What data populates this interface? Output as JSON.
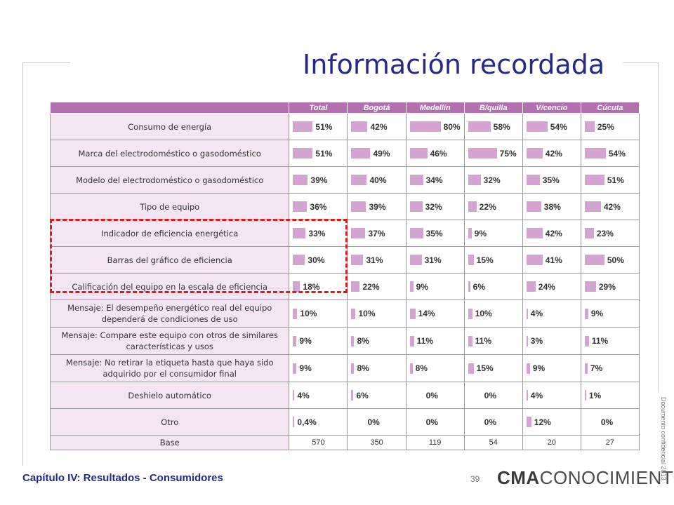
{
  "title": "Información recordada",
  "table": {
    "columns": [
      "Total",
      "Bogotá",
      "Medellín",
      "B/quilla",
      "V/cencio",
      "Cúcuta"
    ],
    "rows": [
      {
        "label": "Consumo de energía",
        "values": [
          "51%",
          "42%",
          "80%",
          "58%",
          "54%",
          "25%"
        ],
        "levels": [
          51,
          42,
          80,
          58,
          54,
          25
        ]
      },
      {
        "label": "Marca del electrodoméstico  o gasodoméstico",
        "values": [
          "51%",
          "49%",
          "46%",
          "75%",
          "42%",
          "54%"
        ],
        "levels": [
          51,
          49,
          46,
          75,
          42,
          54
        ]
      },
      {
        "label": "Modelo del electrodoméstico  o gasodoméstico",
        "values": [
          "39%",
          "40%",
          "34%",
          "32%",
          "35%",
          "51%"
        ],
        "levels": [
          39,
          40,
          34,
          32,
          35,
          51
        ]
      },
      {
        "label": "Tipo de equipo",
        "values": [
          "36%",
          "39%",
          "32%",
          "22%",
          "38%",
          "42%"
        ],
        "levels": [
          36,
          39,
          32,
          22,
          38,
          42
        ]
      },
      {
        "label": "Indicador de eficiencia  energética",
        "values": [
          "33%",
          "37%",
          "35%",
          "9%",
          "42%",
          "23%"
        ],
        "levels": [
          33,
          37,
          35,
          9,
          42,
          23
        ]
      },
      {
        "label": "Barras del gráfico de eficiencia",
        "values": [
          "30%",
          "31%",
          "31%",
          "15%",
          "41%",
          "50%"
        ],
        "levels": [
          30,
          31,
          31,
          15,
          41,
          50
        ]
      },
      {
        "label": "Calificación del equipo en la escala de eficiencia",
        "values": [
          "18%",
          "22%",
          "9%",
          "6%",
          "24%",
          "29%"
        ],
        "levels": [
          18,
          22,
          9,
          6,
          24,
          29
        ]
      },
      {
        "label": "Mensaje: El desempeño  energético  real del equipo dependerá  de condiciones de uso",
        "values": [
          "10%",
          "10%",
          "14%",
          "10%",
          "4%",
          "9%"
        ],
        "levels": [
          10,
          10,
          14,
          10,
          4,
          9
        ]
      },
      {
        "label": "Mensaje:  Compare este equipo  con otros de similares características  y usos",
        "values": [
          "9%",
          "8%",
          "11%",
          "11%",
          "3%",
          "11%"
        ],
        "levels": [
          9,
          8,
          11,
          11,
          3,
          11
        ]
      },
      {
        "label": "Mensaje:  No retirar la etiqueta  hasta que haya sido adquirido por el consumidor final",
        "values": [
          "9%",
          "8%",
          "8%",
          "15%",
          "9%",
          "7%"
        ],
        "levels": [
          9,
          8,
          8,
          15,
          9,
          7
        ]
      },
      {
        "label": "Deshielo automático",
        "values": [
          "4%",
          "6%",
          "0%",
          "0%",
          "4%",
          "1%"
        ],
        "levels": [
          4,
          6,
          0,
          0,
          4,
          1
        ]
      },
      {
        "label": "Otro",
        "values": [
          "0,4%",
          "0%",
          "0%",
          "0%",
          "12%",
          "0%"
        ],
        "levels": [
          0.4,
          0,
          0,
          0,
          12,
          0
        ]
      }
    ],
    "base": {
      "label": "Base",
      "values": [
        "570",
        "350",
        "119",
        "54",
        "20",
        "27"
      ]
    }
  },
  "footer": {
    "caption": "Capítulo IV: Resultados - Consumidores",
    "page_number": "39",
    "logo_strong": "CMA",
    "logo_rest": "CONOCIMIENTO",
    "confidential": "Documento confidencial 2013."
  },
  "colors": {
    "title": "#26288a",
    "header": "#b46fb0",
    "label_bg": "#f3e6f2",
    "bar": "#d5a3d1",
    "highlight": "#e8161b"
  }
}
